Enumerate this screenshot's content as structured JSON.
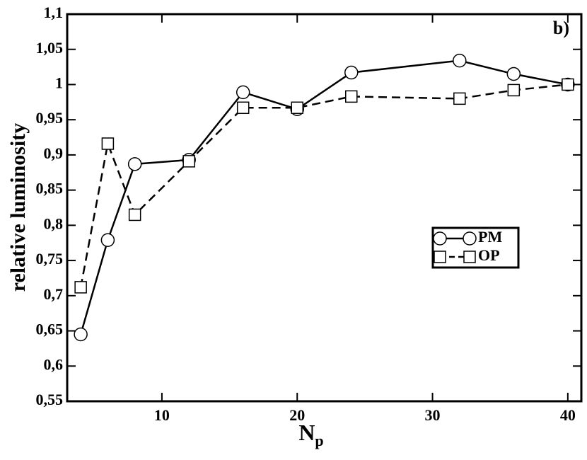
{
  "chart_data": {
    "type": "line",
    "annotation": "b)",
    "xlabel": "N",
    "xlabel_sub": "p",
    "ylabel": "relative luminosity",
    "xlim": [
      3,
      41
    ],
    "xticks": [
      10,
      20,
      30,
      40
    ],
    "ylim": [
      0.55,
      1.1
    ],
    "yticks": [
      {
        "value": 0.55,
        "label": "0,55"
      },
      {
        "value": 0.6,
        "label": "0,6"
      },
      {
        "value": 0.65,
        "label": "0,65"
      },
      {
        "value": 0.7,
        "label": "0,7"
      },
      {
        "value": 0.75,
        "label": "0,75"
      },
      {
        "value": 0.8,
        "label": "0,8"
      },
      {
        "value": 0.85,
        "label": "0,85"
      },
      {
        "value": 0.9,
        "label": "0,9"
      },
      {
        "value": 0.95,
        "label": "0,95"
      },
      1,
      {
        "value": 1.05,
        "label": "1,05"
      },
      {
        "value": 1.1,
        "label": "1,1"
      }
    ],
    "legend_position": "lower right",
    "series": [
      {
        "name": "PM",
        "color": "#000000",
        "style": "solid",
        "marker": "circle",
        "x": [
          4,
          6,
          8,
          12,
          16,
          20,
          24,
          32,
          36,
          40
        ],
        "values": [
          0.645,
          0.779,
          0.887,
          0.893,
          0.989,
          0.965,
          1.017,
          1.034,
          1.015,
          1.0
        ]
      },
      {
        "name": "OP",
        "color": "#000000",
        "style": "dashed",
        "marker": "square",
        "x": [
          4,
          6,
          8,
          12,
          16,
          20,
          24,
          32,
          36,
          40
        ],
        "values": [
          0.712,
          0.916,
          0.815,
          0.891,
          0.967,
          0.967,
          0.983,
          0.98,
          0.992,
          1.0
        ]
      }
    ]
  }
}
